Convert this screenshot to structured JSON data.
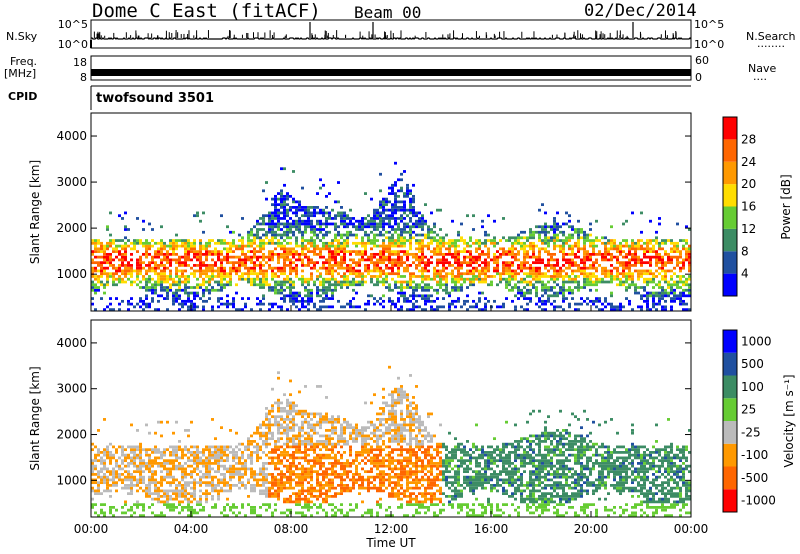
{
  "header": {
    "station": "Dome C East (fitACF)",
    "beam": "Beam 00",
    "date": "02/Dec/2014"
  },
  "side_labels": {
    "nsky": "N.Sky",
    "nsearch": "N.Search",
    "nsearch_dots": "........",
    "freq_line1": "Freq.",
    "freq_line2": "[MHz]",
    "nave": "Nave",
    "nave_dots": "....",
    "cpid": "CPID"
  },
  "cpid_text": "twofsound 3501",
  "colors": {
    "power": [
      "#0000ff",
      "#2050a0",
      "#3c8c64",
      "#66cc33",
      "#ffdd00",
      "#ff9900",
      "#ff6600",
      "#ff0000"
    ],
    "velocity": [
      "#ff0000",
      "#ff6600",
      "#ff9900",
      "#bbbbbb",
      "#66cc33",
      "#3c8c64",
      "#2050a0",
      "#0000ff"
    ],
    "grey_data": "#bbbbbb"
  },
  "chart_data": [
    {
      "type": "line",
      "name": "N.Sky / N.Search",
      "ylabel_left_ticks": [
        "10^5",
        "10^0"
      ],
      "ylabel_right_ticks": [
        "10^5",
        "10^0"
      ]
    },
    {
      "type": "line",
      "name": "Freq / Nave",
      "left_ticks": [
        "18",
        "8"
      ],
      "right_ticks": [
        "60",
        "0"
      ]
    },
    {
      "type": "heatmap",
      "ylabel": "Slant Range [km]",
      "yticks": [
        "1000",
        "2000",
        "3000",
        "4000"
      ],
      "ylim": [
        200,
        4500
      ],
      "colorbar_label": "Power [dB]",
      "colorbar_ticks": [
        "4",
        "8",
        "12",
        "16",
        "20",
        "24",
        "28"
      ],
      "clim": [
        0,
        32
      ]
    },
    {
      "type": "heatmap",
      "ylabel": "Slant Range [km]",
      "yticks": [
        "1000",
        "2000",
        "3000",
        "4000"
      ],
      "ylim": [
        200,
        4500
      ],
      "colorbar_label": "Velocity [m s⁻¹]",
      "colorbar_ticks": [
        "1000",
        "500",
        "100",
        "25",
        "-25",
        "-100",
        "-500",
        "-1000"
      ],
      "xlabel": "Time UT",
      "xticks": [
        "00:00",
        "04:00",
        "08:00",
        "12:00",
        "16:00",
        "20:00",
        "00:00"
      ],
      "xlim": [
        0,
        24
      ]
    }
  ]
}
